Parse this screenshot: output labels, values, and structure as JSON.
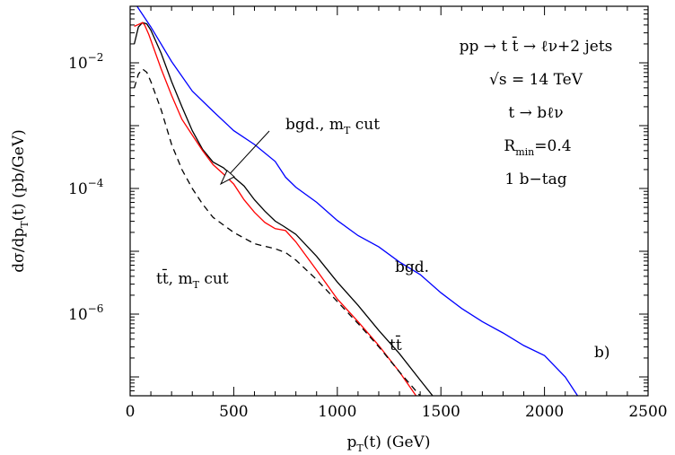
{
  "chart_data": {
    "type": "line",
    "log_y": true,
    "xlim": [
      0,
      2500
    ],
    "ylim_log10": [
      -7.3,
      -1.1
    ],
    "xticks": [
      0,
      500,
      1000,
      1500,
      2000,
      2500
    ],
    "xtick_labels": [
      "0",
      "500",
      "1000",
      "1500",
      "2000",
      "2500"
    ],
    "ytick_exponents": [
      -2,
      -4,
      -6
    ],
    "ytick_labels": [
      "10",
      "10",
      "10"
    ],
    "ytick_label_exps": [
      "−2",
      "−4",
      "−6"
    ],
    "xlabel": {
      "main": "p",
      "sub": "T",
      "rest": "(t)  (GeV)"
    },
    "ylabel": {
      "main": "dσ/dp",
      "sub": "T",
      "rest": "(t)  (pb/GeV)"
    },
    "panel_label": "b)",
    "info_lines": [
      {
        "text": "pp → t t̄ → ℓν+2 jets"
      },
      {
        "text": "√s  =  14  TeV"
      },
      {
        "text": "t → bℓν"
      },
      {
        "text": "R",
        "sub": "min",
        "rest": "=0.4"
      },
      {
        "text": "1  b−tag"
      }
    ],
    "annotations": {
      "bgd_mt_cut": {
        "main": "bgd.,  m",
        "sub": "T",
        "rest": " cut"
      },
      "tt_mt_cut": {
        "main": "tt̄,  m",
        "sub": "T",
        "rest": " cut"
      },
      "bgd": "bgd.",
      "tt": "tt̄"
    },
    "series": [
      {
        "name": "bgd.",
        "color": "#0000ff",
        "dash": "",
        "points": [
          [
            15,
            -1.01
          ],
          [
            100,
            -1.43
          ],
          [
            200,
            -1.98
          ],
          [
            300,
            -2.45
          ],
          [
            400,
            -2.77
          ],
          [
            500,
            -3.08
          ],
          [
            600,
            -3.3
          ],
          [
            700,
            -3.57
          ],
          [
            750,
            -3.82
          ],
          [
            800,
            -3.98
          ],
          [
            900,
            -4.22
          ],
          [
            1000,
            -4.51
          ],
          [
            1100,
            -4.75
          ],
          [
            1200,
            -4.93
          ],
          [
            1300,
            -5.17
          ],
          [
            1400,
            -5.37
          ],
          [
            1500,
            -5.66
          ],
          [
            1600,
            -5.91
          ],
          [
            1700,
            -6.12
          ],
          [
            1800,
            -6.3
          ],
          [
            1900,
            -6.5
          ],
          [
            2000,
            -6.66
          ],
          [
            2100,
            -7.0
          ],
          [
            2160,
            -7.3
          ]
        ]
      },
      {
        "name": "tt̄",
        "color": "#000000",
        "dash": "",
        "points": [
          [
            20,
            -1.7
          ],
          [
            40,
            -1.43
          ],
          [
            60,
            -1.36
          ],
          [
            80,
            -1.38
          ],
          [
            100,
            -1.48
          ],
          [
            150,
            -1.85
          ],
          [
            200,
            -2.3
          ],
          [
            250,
            -2.7
          ],
          [
            300,
            -3.08
          ],
          [
            350,
            -3.38
          ],
          [
            400,
            -3.58
          ],
          [
            450,
            -3.67
          ],
          [
            500,
            -3.82
          ],
          [
            550,
            -3.96
          ],
          [
            600,
            -4.18
          ],
          [
            650,
            -4.36
          ],
          [
            700,
            -4.52
          ],
          [
            740,
            -4.6
          ],
          [
            800,
            -4.73
          ],
          [
            900,
            -5.08
          ],
          [
            1000,
            -5.49
          ],
          [
            1100,
            -5.86
          ],
          [
            1200,
            -6.26
          ],
          [
            1300,
            -6.63
          ],
          [
            1400,
            -7.05
          ],
          [
            1460,
            -7.3
          ]
        ]
      },
      {
        "name": "bgd., mT cut",
        "color": "#ff0000",
        "dash": "",
        "points": [
          [
            20,
            -1.42
          ],
          [
            40,
            -1.39
          ],
          [
            60,
            -1.36
          ],
          [
            70,
            -1.4
          ],
          [
            90,
            -1.55
          ],
          [
            150,
            -2.1
          ],
          [
            200,
            -2.52
          ],
          [
            250,
            -2.9
          ],
          [
            300,
            -3.15
          ],
          [
            350,
            -3.4
          ],
          [
            400,
            -3.62
          ],
          [
            450,
            -3.77
          ],
          [
            500,
            -3.93
          ],
          [
            550,
            -4.18
          ],
          [
            600,
            -4.38
          ],
          [
            650,
            -4.54
          ],
          [
            700,
            -4.64
          ],
          [
            750,
            -4.67
          ],
          [
            800,
            -4.85
          ],
          [
            900,
            -5.3
          ],
          [
            1000,
            -5.76
          ],
          [
            1100,
            -6.12
          ],
          [
            1200,
            -6.5
          ],
          [
            1300,
            -6.92
          ],
          [
            1380,
            -7.3
          ]
        ]
      },
      {
        "name": "tt̄, mT cut",
        "color": "#000000",
        "dash": "7,5",
        "points": [
          [
            20,
            -2.4
          ],
          [
            40,
            -2.18
          ],
          [
            60,
            -2.1
          ],
          [
            80,
            -2.15
          ],
          [
            100,
            -2.3
          ],
          [
            150,
            -2.75
          ],
          [
            200,
            -3.3
          ],
          [
            250,
            -3.7
          ],
          [
            300,
            -4.0
          ],
          [
            350,
            -4.25
          ],
          [
            400,
            -4.46
          ],
          [
            500,
            -4.7
          ],
          [
            600,
            -4.88
          ],
          [
            700,
            -4.96
          ],
          [
            750,
            -5.02
          ],
          [
            800,
            -5.14
          ],
          [
            900,
            -5.45
          ],
          [
            1000,
            -5.8
          ],
          [
            1100,
            -6.15
          ],
          [
            1200,
            -6.52
          ],
          [
            1300,
            -6.92
          ],
          [
            1400,
            -7.3
          ]
        ]
      }
    ]
  }
}
